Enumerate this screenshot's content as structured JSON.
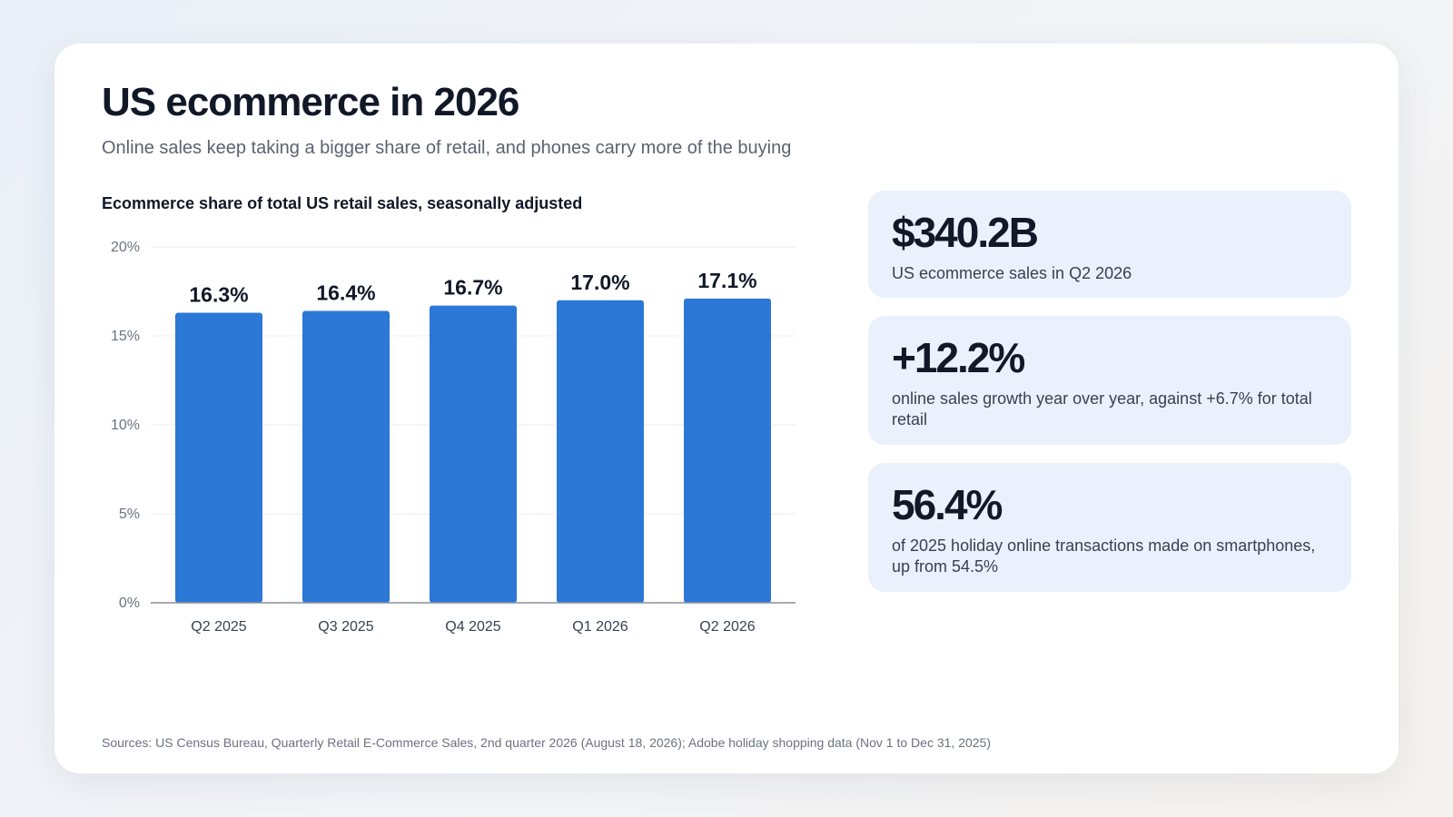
{
  "header": {
    "title": "US ecommerce in 2026",
    "subtitle": "Online sales keep taking a bigger share of retail, and phones carry more of the buying"
  },
  "chart_data": {
    "type": "bar",
    "title": "Ecommerce share of total US retail sales, seasonally adjusted",
    "categories": [
      "Q2 2025",
      "Q3 2025",
      "Q4 2025",
      "Q1 2026",
      "Q2 2026"
    ],
    "values": [
      16.3,
      16.4,
      16.7,
      17.0,
      17.1
    ],
    "value_labels": [
      "16.3%",
      "16.4%",
      "16.7%",
      "17.0%",
      "17.1%"
    ],
    "y_ticks": [
      0,
      5,
      10,
      15,
      20
    ],
    "y_tick_labels": [
      "0%",
      "5%",
      "10%",
      "15%",
      "20%"
    ],
    "ylim": [
      0,
      20
    ],
    "grid": true,
    "bar_color": "#2b78d6",
    "xlabel": "",
    "ylabel": ""
  },
  "stats": [
    {
      "value": "$340.2B",
      "description": "US ecommerce sales in Q2 2026"
    },
    {
      "value": "+12.2%",
      "description": "online sales growth year over year, against +6.7% for total retail"
    },
    {
      "value": "56.4%",
      "description": "of 2025 holiday online transactions made on smartphones, up from 54.5%"
    }
  ],
  "footer": {
    "sources": "Sources: US Census Bureau, Quarterly Retail E-Commerce Sales, 2nd quarter 2026 (August 18, 2026); Adobe holiday shopping data (Nov 1 to Dec 31, 2025)"
  },
  "colors": {
    "card_background": "#ffffff",
    "stat_background": "#eaf1fd",
    "accent": "#2b78d6"
  }
}
